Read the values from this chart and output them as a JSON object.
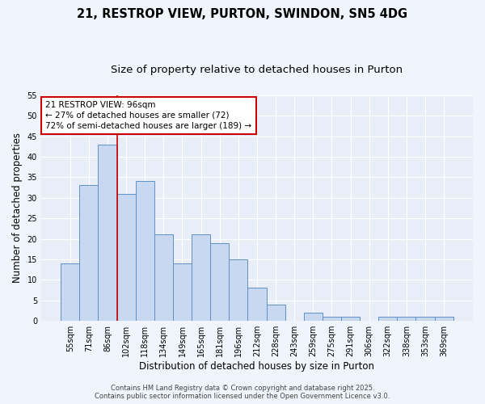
{
  "title1": "21, RESTROP VIEW, PURTON, SWINDON, SN5 4DG",
  "title2": "Size of property relative to detached houses in Purton",
  "xlabel": "Distribution of detached houses by size in Purton",
  "ylabel": "Number of detached properties",
  "categories": [
    "55sqm",
    "71sqm",
    "86sqm",
    "102sqm",
    "118sqm",
    "134sqm",
    "149sqm",
    "165sqm",
    "181sqm",
    "196sqm",
    "212sqm",
    "228sqm",
    "243sqm",
    "259sqm",
    "275sqm",
    "291sqm",
    "306sqm",
    "322sqm",
    "338sqm",
    "353sqm",
    "369sqm"
  ],
  "values": [
    14,
    33,
    43,
    31,
    34,
    21,
    14,
    21,
    19,
    15,
    8,
    4,
    0,
    2,
    1,
    1,
    0,
    1,
    1,
    1,
    1
  ],
  "bar_color": "#c8d8f0",
  "bar_edge_color": "#6090c8",
  "vline_color": "#cc0000",
  "annotation_text": "21 RESTROP VIEW: 96sqm\n← 27% of detached houses are smaller (72)\n72% of semi-detached houses are larger (189) →",
  "annotation_box_facecolor": "#ffffff",
  "annotation_box_edgecolor": "#cc0000",
  "ylim": [
    0,
    55
  ],
  "yticks": [
    0,
    5,
    10,
    15,
    20,
    25,
    30,
    35,
    40,
    45,
    50,
    55
  ],
  "plot_bg_color": "#e8eef8",
  "fig_bg_color": "#f0f4fc",
  "grid_color": "#ffffff",
  "footer_text": "Contains HM Land Registry data © Crown copyright and database right 2025.\nContains public sector information licensed under the Open Government Licence v3.0.",
  "title_fontsize": 10.5,
  "subtitle_fontsize": 9.5,
  "tick_fontsize": 7,
  "ylabel_fontsize": 8.5,
  "xlabel_fontsize": 8.5,
  "annotation_fontsize": 7.5,
  "footer_fontsize": 6
}
